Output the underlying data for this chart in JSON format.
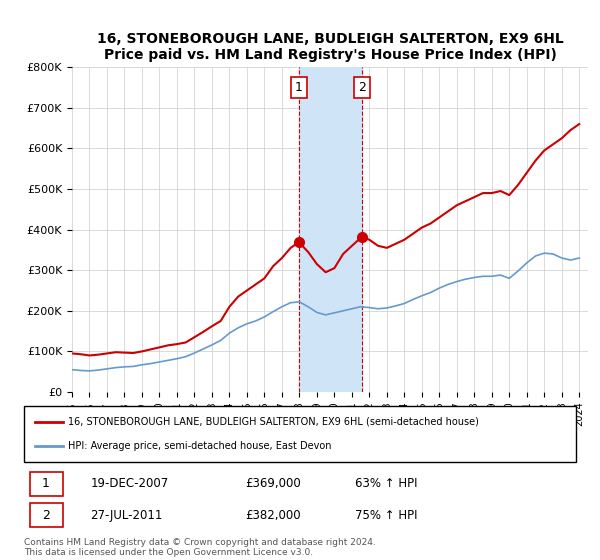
{
  "title": "16, STONEBOROUGH LANE, BUDLEIGH SALTERTON, EX9 6HL",
  "subtitle": "Price paid vs. HM Land Registry's House Price Index (HPI)",
  "background_color": "#ffffff",
  "grid_color": "#cccccc",
  "ylim": [
    0,
    800000
  ],
  "yticks": [
    0,
    100000,
    200000,
    300000,
    400000,
    500000,
    600000,
    700000,
    800000
  ],
  "ytick_labels": [
    "£0",
    "£100K",
    "£200K",
    "£300K",
    "£400K",
    "£500K",
    "£600K",
    "£700K",
    "£800K"
  ],
  "xlim_start": 1995.0,
  "xlim_end": 2024.5,
  "sale1_date_num": 2007.97,
  "sale1_price": 369000,
  "sale2_date_num": 2011.57,
  "sale2_price": 382000,
  "shade_color": "#d0e4f7",
  "red_line_color": "#cc0000",
  "blue_line_color": "#6699cc",
  "marker_color_red": "#cc0000",
  "legend_label_red": "16, STONEBOROUGH LANE, BUDLEIGH SALTERTON, EX9 6HL (semi-detached house)",
  "legend_label_blue": "HPI: Average price, semi-detached house, East Devon",
  "transaction1_label": "1",
  "transaction1_date": "19-DEC-2007",
  "transaction1_price": "£369,000",
  "transaction1_hpi": "63% ↑ HPI",
  "transaction2_label": "2",
  "transaction2_date": "27-JUL-2011",
  "transaction2_price": "£382,000",
  "transaction2_hpi": "75% ↑ HPI",
  "footer": "Contains HM Land Registry data © Crown copyright and database right 2024.\nThis data is licensed under the Open Government Licence v3.0.",
  "red_line_x": [
    1995.0,
    1995.5,
    1996.0,
    1996.5,
    1997.0,
    1997.5,
    1998.0,
    1998.5,
    1999.0,
    1999.5,
    2000.0,
    2000.5,
    2001.0,
    2001.5,
    2002.0,
    2002.5,
    2003.0,
    2003.5,
    2004.0,
    2004.5,
    2005.0,
    2005.5,
    2006.0,
    2006.5,
    2007.0,
    2007.5,
    2007.97,
    2008.5,
    2009.0,
    2009.5,
    2010.0,
    2010.5,
    2011.0,
    2011.57,
    2012.0,
    2012.5,
    2013.0,
    2013.5,
    2014.0,
    2014.5,
    2015.0,
    2015.5,
    2016.0,
    2016.5,
    2017.0,
    2017.5,
    2018.0,
    2018.5,
    2019.0,
    2019.5,
    2020.0,
    2020.5,
    2021.0,
    2021.5,
    2022.0,
    2022.5,
    2023.0,
    2023.5,
    2024.0
  ],
  "red_line_y": [
    95000,
    93000,
    90000,
    92000,
    95000,
    98000,
    97000,
    96000,
    100000,
    105000,
    110000,
    115000,
    118000,
    122000,
    135000,
    148000,
    162000,
    175000,
    210000,
    235000,
    250000,
    265000,
    280000,
    310000,
    330000,
    355000,
    369000,
    345000,
    315000,
    295000,
    305000,
    340000,
    360000,
    382000,
    375000,
    360000,
    355000,
    365000,
    375000,
    390000,
    405000,
    415000,
    430000,
    445000,
    460000,
    470000,
    480000,
    490000,
    490000,
    495000,
    485000,
    510000,
    540000,
    570000,
    595000,
    610000,
    625000,
    645000,
    660000
  ],
  "blue_line_x": [
    1995.0,
    1995.5,
    1996.0,
    1996.5,
    1997.0,
    1997.5,
    1998.0,
    1998.5,
    1999.0,
    1999.5,
    2000.0,
    2000.5,
    2001.0,
    2001.5,
    2002.0,
    2002.5,
    2003.0,
    2003.5,
    2004.0,
    2004.5,
    2005.0,
    2005.5,
    2006.0,
    2006.5,
    2007.0,
    2007.5,
    2008.0,
    2008.5,
    2009.0,
    2009.5,
    2010.0,
    2010.5,
    2011.0,
    2011.5,
    2012.0,
    2012.5,
    2013.0,
    2013.5,
    2014.0,
    2014.5,
    2015.0,
    2015.5,
    2016.0,
    2016.5,
    2017.0,
    2017.5,
    2018.0,
    2018.5,
    2019.0,
    2019.5,
    2020.0,
    2020.5,
    2021.0,
    2021.5,
    2022.0,
    2022.5,
    2023.0,
    2023.5,
    2024.0
  ],
  "blue_line_y": [
    55000,
    53000,
    52000,
    54000,
    57000,
    60000,
    62000,
    63000,
    67000,
    70000,
    74000,
    78000,
    82000,
    87000,
    96000,
    106000,
    116000,
    127000,
    145000,
    158000,
    168000,
    175000,
    185000,
    198000,
    210000,
    220000,
    222000,
    210000,
    196000,
    190000,
    195000,
    200000,
    205000,
    210000,
    208000,
    205000,
    207000,
    212000,
    218000,
    228000,
    237000,
    245000,
    256000,
    265000,
    272000,
    278000,
    282000,
    285000,
    285000,
    288000,
    280000,
    298000,
    318000,
    335000,
    342000,
    340000,
    330000,
    325000,
    330000
  ]
}
